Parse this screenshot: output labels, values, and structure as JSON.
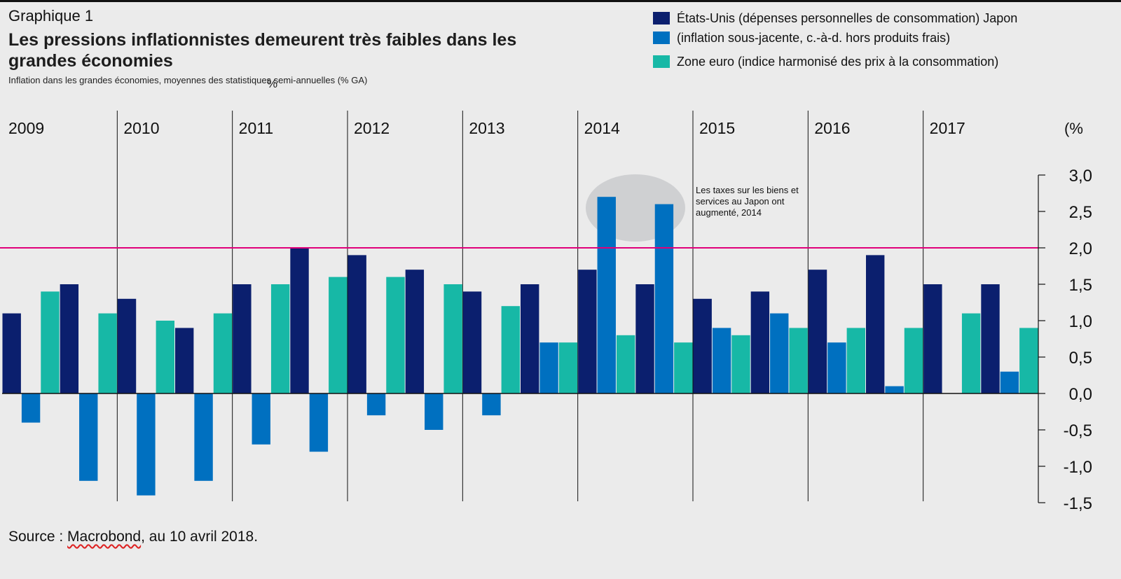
{
  "header": {
    "graph_label": "Graphique 1",
    "title": "Les pressions inflationnistes demeurent très faibles dans les grandes économies",
    "subtitle": "Inflation dans les grandes économies, moyennes des statistiques semi-annuelles (% GA)",
    "subtitle_pct_mark": "%"
  },
  "legend": {
    "items": [
      {
        "label": "États-Unis (dépenses personnelles de consommation) Japon",
        "color": "#0b1f6e"
      },
      {
        "label": "(inflation sous-jacente, c.-à-d. hors produits frais)",
        "color": "#0070c0"
      },
      {
        "label": "Zone euro (indice harmonisé des prix à la consommation)",
        "color": "#17b8a6"
      }
    ]
  },
  "annotation": {
    "text": "Les taxes sur les biens et services au Japon ont augmenté, 2014"
  },
  "source": {
    "prefix": "Source : ",
    "link": "Macrobond",
    "suffix": ", au 10 avril 2018."
  },
  "chart_data": {
    "type": "bar",
    "years": [
      "2009",
      "2010",
      "2011",
      "2012",
      "2013",
      "2014",
      "2015",
      "2016",
      "2017"
    ],
    "y_unit_label": "(%",
    "ylim": [
      -1.5,
      3.0
    ],
    "y_ticks": [
      3.0,
      2.5,
      2.0,
      1.5,
      1.0,
      0.5,
      0.0,
      -0.5,
      -1.0,
      -1.5
    ],
    "y_tick_labels": [
      "3,0",
      "2,5",
      "2,0",
      "1,5",
      "1,0",
      "0,5",
      "0,0",
      "-0,5",
      "-1,0",
      "-1,5"
    ],
    "reference_line": {
      "value": 2.0,
      "color": "#e0007a"
    },
    "periods_per_year": 2,
    "series_colors": [
      "#0b1f6e",
      "#0070c0",
      "#17b8a6"
    ],
    "series": [
      {
        "values": [
          1.1,
          1.5,
          1.3,
          0.9,
          1.5,
          2.0,
          1.9,
          1.7,
          1.4,
          1.5,
          1.7,
          1.5,
          1.3,
          1.4,
          1.7,
          1.9,
          1.5,
          1.5
        ]
      },
      {
        "values": [
          -0.4,
          -1.2,
          -1.4,
          -1.2,
          -0.7,
          -0.8,
          -0.3,
          -0.5,
          -0.3,
          0.7,
          2.7,
          2.6,
          0.9,
          1.1,
          0.7,
          0.1,
          0.0,
          0.3
        ]
      },
      {
        "values": [
          1.4,
          1.1,
          1.0,
          1.1,
          1.5,
          1.6,
          1.6,
          1.5,
          1.2,
          0.7,
          0.8,
          0.7,
          0.8,
          0.9,
          0.9,
          0.9,
          1.1,
          0.9
        ]
      }
    ]
  }
}
